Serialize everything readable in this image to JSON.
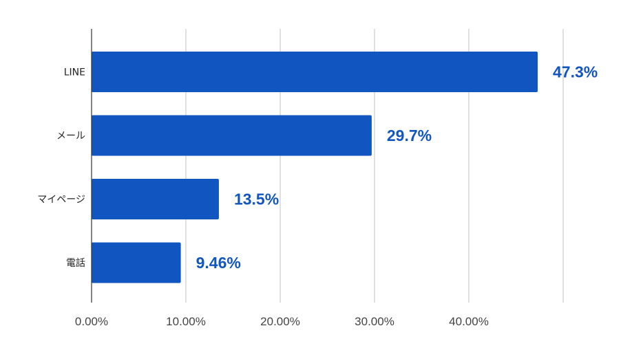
{
  "chart_data": {
    "type": "bar",
    "orientation": "horizontal",
    "categories": [
      "LINE",
      "メール",
      "マイページ",
      "電話"
    ],
    "values": [
      47.3,
      29.7,
      13.5,
      9.46
    ],
    "data_labels": [
      "47.3%",
      "29.7%",
      "13.5%",
      "9.46%"
    ],
    "x_ticks": [
      0,
      10,
      20,
      30,
      40,
      50
    ],
    "x_tick_labels": [
      "0.00%",
      "10.00%",
      "20.00%",
      "30.00%",
      "40.00%",
      ""
    ],
    "xlim": [
      0,
      50
    ],
    "grid": "vertical",
    "legend": "none",
    "title": "",
    "xlabel": "",
    "ylabel": ""
  },
  "colors": {
    "bar": "#1155c0",
    "label": "#1155c0",
    "grid": "#cccccc",
    "axis": "#333333"
  }
}
